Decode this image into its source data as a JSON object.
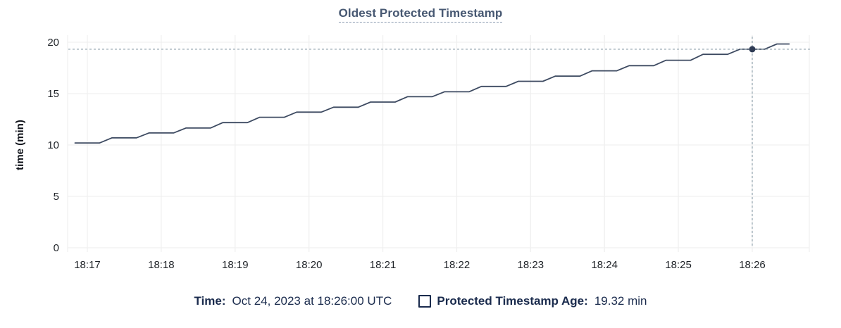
{
  "title": {
    "text": "Oldest Protected Timestamp"
  },
  "footer": {
    "time_label": "Time:",
    "time_value": "Oct 24, 2023 at 18:26:00 UTC",
    "series_label": "Protected Timestamp Age:",
    "series_value": "19.32 min"
  },
  "colors": {
    "line": "#3d4a61",
    "dot": "#2e3b54",
    "crosshair": "#a3b2bb",
    "grid": "#f0f0f0",
    "title": "#475872",
    "footer_text": "#1a2b4d"
  },
  "chart_data": {
    "type": "line",
    "title": "Oldest Protected Timestamp",
    "xlabel": "",
    "ylabel": "time (min)",
    "ylim": [
      0,
      20
    ],
    "y_ticks": [
      0,
      5,
      10,
      15,
      20
    ],
    "x_ticks": [
      "18:17",
      "18:18",
      "18:19",
      "18:20",
      "18:21",
      "18:22",
      "18:23",
      "18:24",
      "18:25",
      "18:26"
    ],
    "grid": true,
    "legend_position": "bottom",
    "hover": {
      "time": "18:26:00",
      "value": 19.32,
      "crosshair": true
    },
    "series": [
      {
        "name": "Protected Timestamp Age",
        "unit": "min",
        "points": [
          [
            "18:16:50",
            10.2
          ],
          [
            "18:17:00",
            10.2
          ],
          [
            "18:17:10",
            10.2
          ],
          [
            "18:17:20",
            10.7
          ],
          [
            "18:17:30",
            10.7
          ],
          [
            "18:17:40",
            10.7
          ],
          [
            "18:17:50",
            11.17
          ],
          [
            "18:18:00",
            11.17
          ],
          [
            "18:18:10",
            11.17
          ],
          [
            "18:18:20",
            11.65
          ],
          [
            "18:18:30",
            11.65
          ],
          [
            "18:18:40",
            11.65
          ],
          [
            "18:18:50",
            12.18
          ],
          [
            "18:19:00",
            12.18
          ],
          [
            "18:19:10",
            12.18
          ],
          [
            "18:19:20",
            12.7
          ],
          [
            "18:19:30",
            12.7
          ],
          [
            "18:19:40",
            12.7
          ],
          [
            "18:19:50",
            13.2
          ],
          [
            "18:20:00",
            13.2
          ],
          [
            "18:20:10",
            13.2
          ],
          [
            "18:20:20",
            13.68
          ],
          [
            "18:20:30",
            13.68
          ],
          [
            "18:20:40",
            13.68
          ],
          [
            "18:20:50",
            14.18
          ],
          [
            "18:21:00",
            14.18
          ],
          [
            "18:21:10",
            14.18
          ],
          [
            "18:21:20",
            14.7
          ],
          [
            "18:21:30",
            14.7
          ],
          [
            "18:21:40",
            14.7
          ],
          [
            "18:21:50",
            15.18
          ],
          [
            "18:22:00",
            15.18
          ],
          [
            "18:22:10",
            15.18
          ],
          [
            "18:22:20",
            15.7
          ],
          [
            "18:22:30",
            15.7
          ],
          [
            "18:22:40",
            15.7
          ],
          [
            "18:22:50",
            16.2
          ],
          [
            "18:23:00",
            16.2
          ],
          [
            "18:23:10",
            16.2
          ],
          [
            "18:23:20",
            16.7
          ],
          [
            "18:23:30",
            16.7
          ],
          [
            "18:23:40",
            16.7
          ],
          [
            "18:23:50",
            17.22
          ],
          [
            "18:24:00",
            17.22
          ],
          [
            "18:24:10",
            17.22
          ],
          [
            "18:24:20",
            17.72
          ],
          [
            "18:24:30",
            17.72
          ],
          [
            "18:24:40",
            17.72
          ],
          [
            "18:24:50",
            18.25
          ],
          [
            "18:25:00",
            18.25
          ],
          [
            "18:25:10",
            18.25
          ],
          [
            "18:25:20",
            18.82
          ],
          [
            "18:25:30",
            18.82
          ],
          [
            "18:25:40",
            18.82
          ],
          [
            "18:25:50",
            19.32
          ],
          [
            "18:26:00",
            19.32
          ],
          [
            "18:26:10",
            19.32
          ],
          [
            "18:26:20",
            19.83
          ],
          [
            "18:26:30",
            19.83
          ]
        ]
      }
    ]
  }
}
